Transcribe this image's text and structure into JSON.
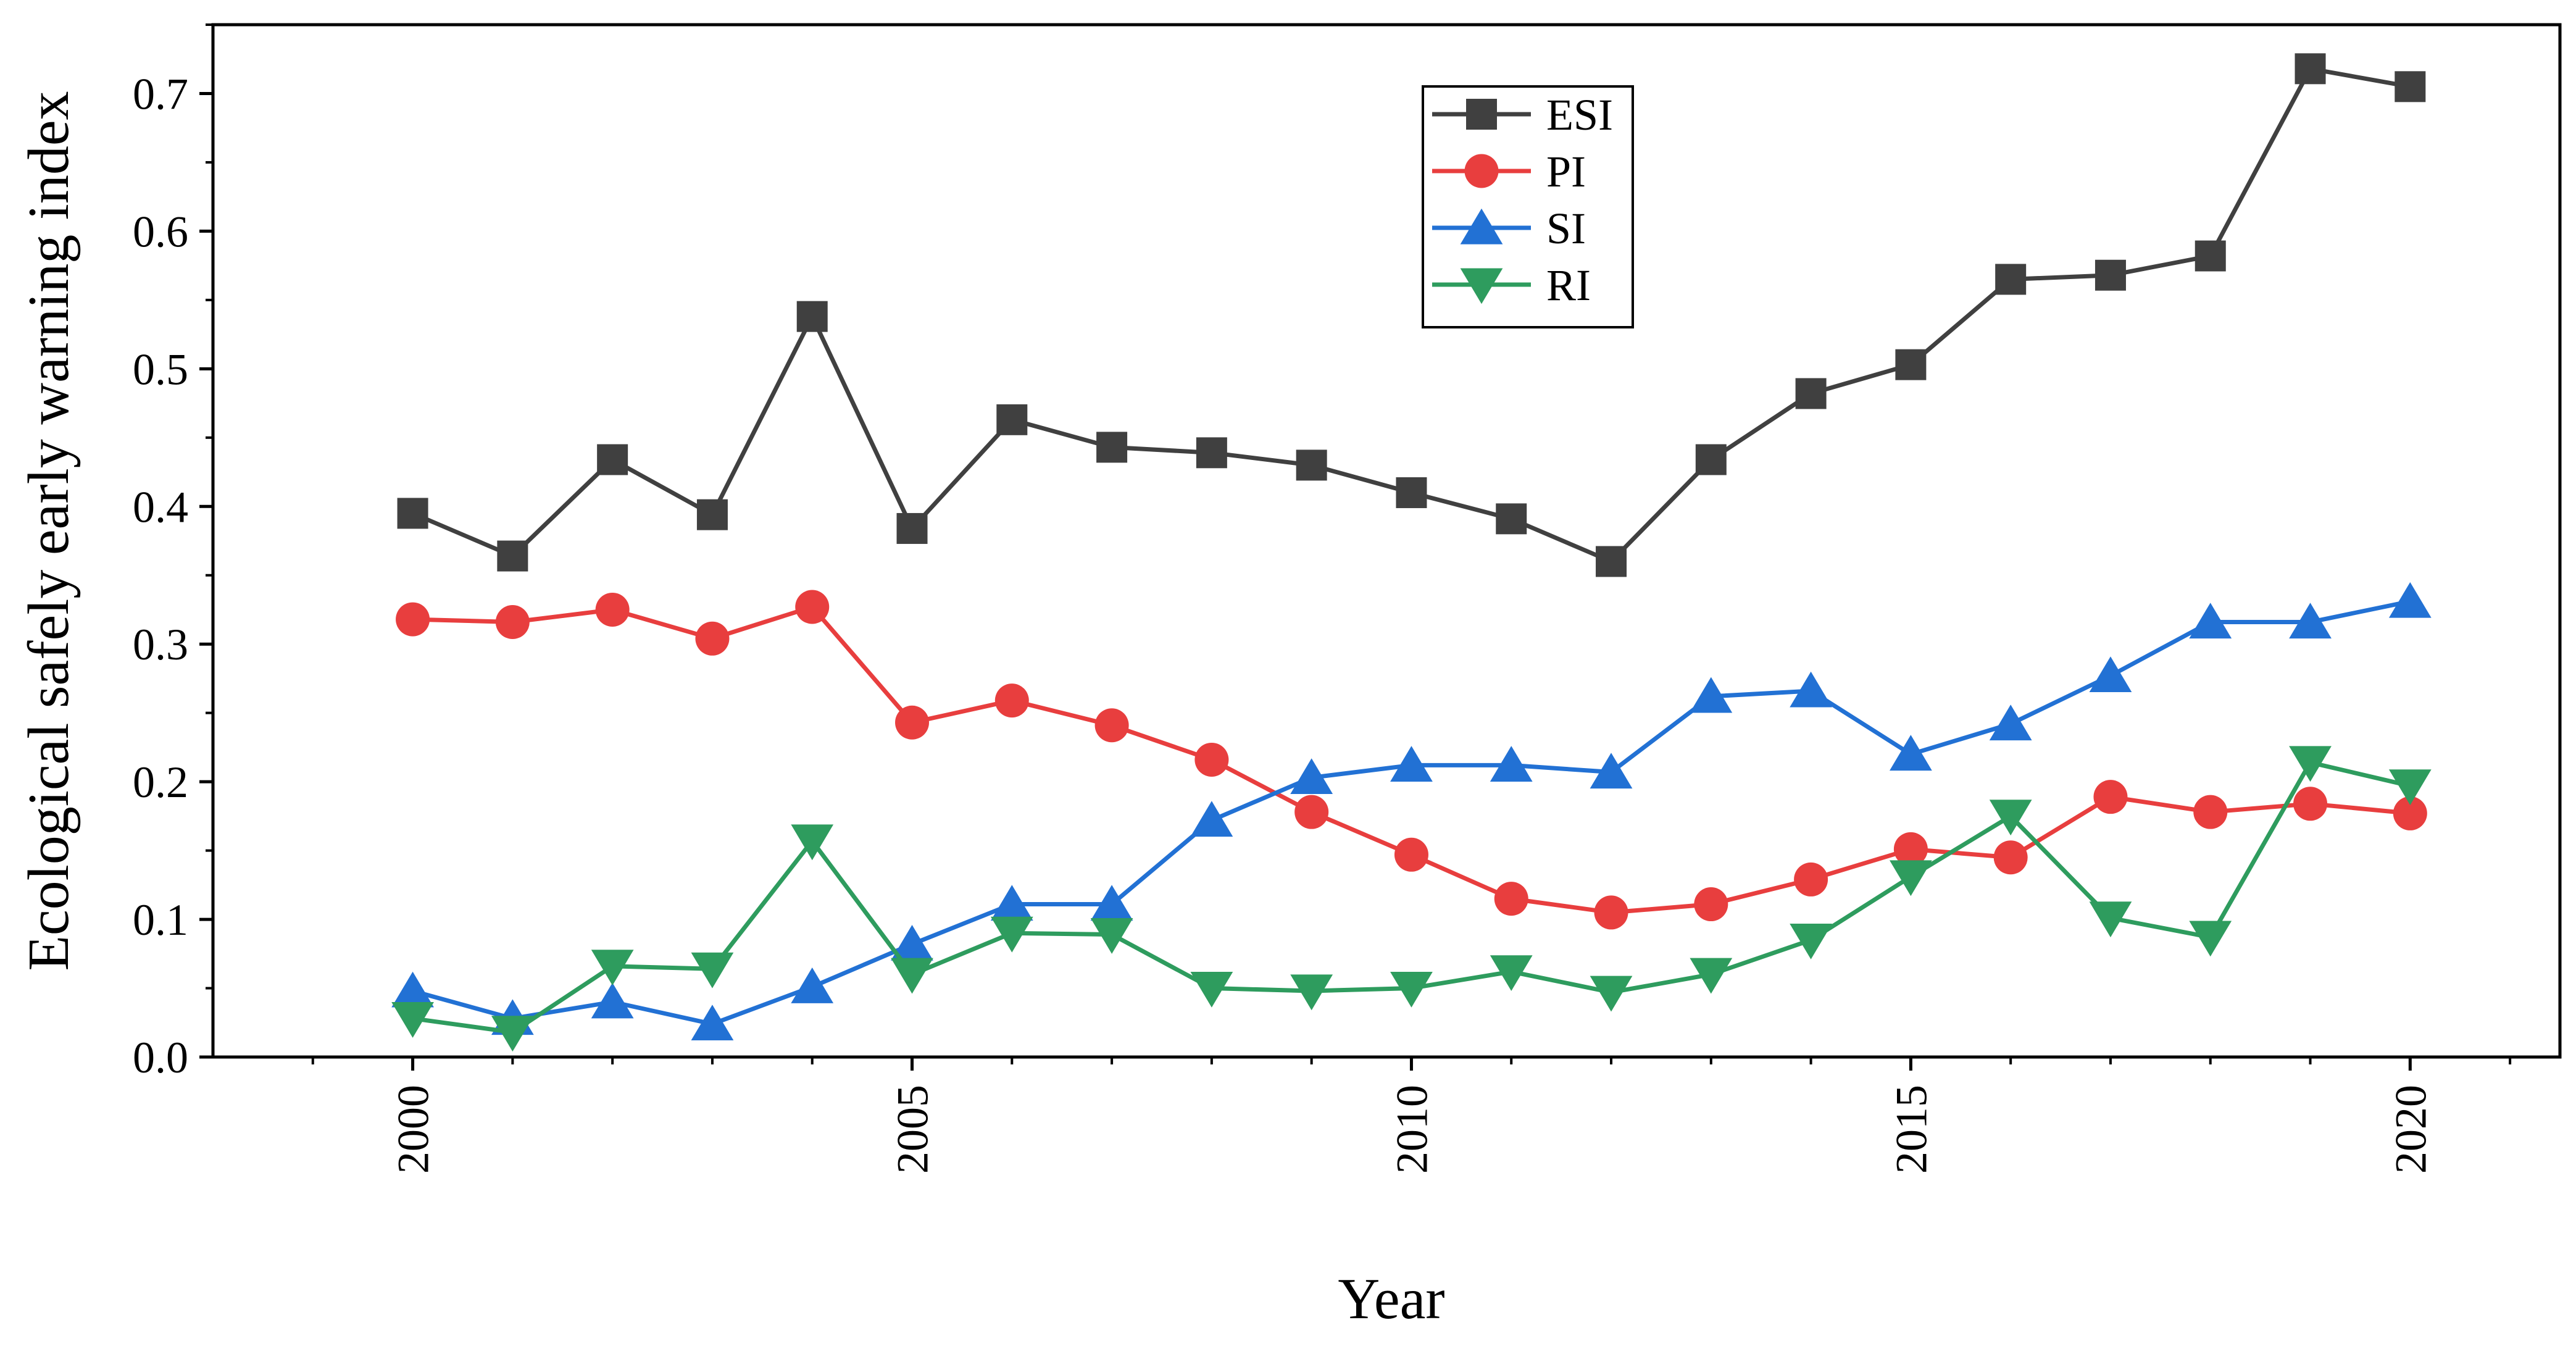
{
  "chart_data": {
    "type": "line",
    "title": "",
    "xlabel": "Year",
    "ylabel": "Ecological safely early warning index",
    "xlim": [
      1998,
      2021.5
    ],
    "ylim": [
      0,
      0.75
    ],
    "x": [
      2000,
      2001,
      2002,
      2003,
      2004,
      2005,
      2006,
      2007,
      2008,
      2009,
      2010,
      2011,
      2012,
      2013,
      2014,
      2015,
      2016,
      2017,
      2018,
      2019,
      2020
    ],
    "x_ticks": [
      "2000",
      "2005",
      "2010",
      "2015",
      "2020"
    ],
    "y_ticks": [
      "0.0",
      "0.1",
      "0.2",
      "0.3",
      "0.4",
      "0.5",
      "0.6",
      "0.7"
    ],
    "grid": false,
    "legend_position": "top-center",
    "series": [
      {
        "name": "ESI",
        "color": "#404040",
        "marker": "square",
        "values": [
          0.395,
          0.364,
          0.434,
          0.394,
          0.538,
          0.384,
          0.463,
          0.443,
          0.439,
          0.43,
          0.41,
          0.391,
          0.36,
          0.434,
          0.482,
          0.503,
          0.565,
          0.568,
          0.582,
          0.718,
          0.705
        ]
      },
      {
        "name": "PI",
        "color": "#e83e3e",
        "marker": "circle",
        "values": [
          0.318,
          0.316,
          0.325,
          0.304,
          0.327,
          0.243,
          0.259,
          0.241,
          0.216,
          0.178,
          0.147,
          0.115,
          0.105,
          0.111,
          0.129,
          0.151,
          0.145,
          0.189,
          0.178,
          0.184,
          0.177
        ]
      },
      {
        "name": "SI",
        "color": "#2271d4",
        "marker": "triangle-up",
        "values": [
          0.048,
          0.028,
          0.04,
          0.024,
          0.051,
          0.082,
          0.111,
          0.111,
          0.172,
          0.203,
          0.212,
          0.212,
          0.207,
          0.262,
          0.266,
          0.22,
          0.242,
          0.277,
          0.316,
          0.316,
          0.331
        ]
      },
      {
        "name": "RI",
        "color": "#2e9c5e",
        "marker": "triangle-down",
        "values": [
          0.028,
          0.018,
          0.066,
          0.064,
          0.157,
          0.06,
          0.09,
          0.089,
          0.05,
          0.048,
          0.05,
          0.062,
          0.047,
          0.06,
          0.085,
          0.131,
          0.175,
          0.101,
          0.087,
          0.214,
          0.197
        ]
      }
    ]
  }
}
